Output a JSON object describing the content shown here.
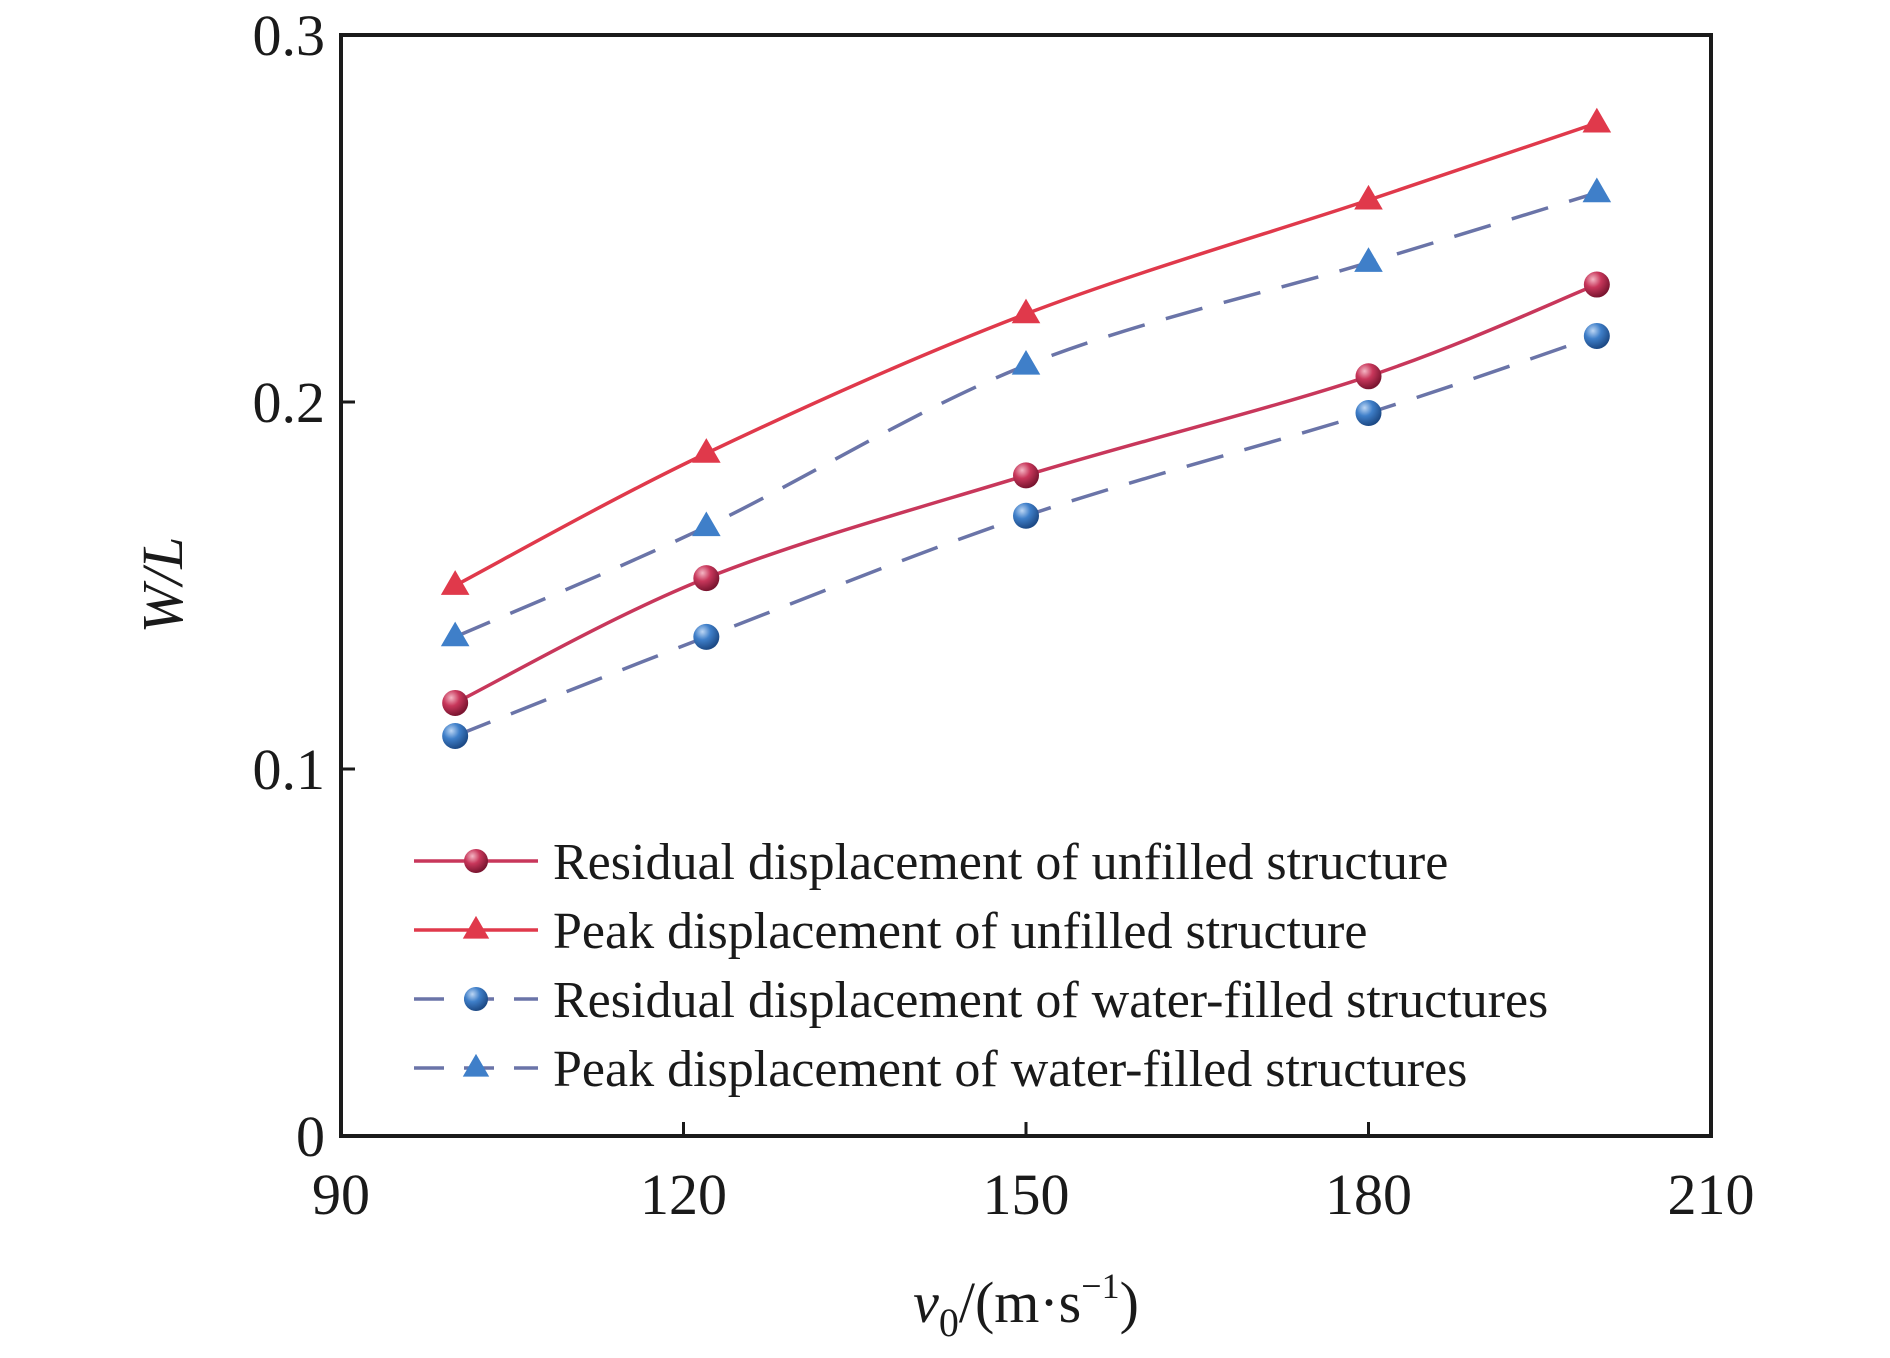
{
  "chart_data": {
    "type": "line",
    "xlabel": {
      "main": "v",
      "sub": "0",
      "rest": "/(m·s",
      "sup": "−1",
      "close": ")"
    },
    "ylabel": "W/L",
    "xlim": [
      90,
      210
    ],
    "ylim": [
      0,
      0.3
    ],
    "x_ticks": [
      90,
      120,
      150,
      180,
      210
    ],
    "x_tick_labels": [
      "90",
      "120",
      "150",
      "180",
      "210"
    ],
    "y_ticks": [
      0,
      0.1,
      0.2,
      0.3
    ],
    "y_tick_labels": [
      "0",
      "0.1",
      "0.2",
      "0.3"
    ],
    "grid": false,
    "legend_position": "bottom-center",
    "x": [
      100,
      122,
      150,
      180,
      200
    ],
    "series": [
      {
        "name": "Residual displacement of unfilled structure",
        "values": [
          0.118,
          0.152,
          0.18,
          0.207,
          0.232
        ],
        "color": "#c8375b",
        "marker": "circle",
        "dash": "solid"
      },
      {
        "name": "Peak displacement of unfilled structure",
        "values": [
          0.15,
          0.186,
          0.224,
          0.255,
          0.276
        ],
        "color": "#e0394b",
        "marker": "triangle",
        "dash": "solid"
      },
      {
        "name": "Residual displacement of water-filled structures",
        "values": [
          0.109,
          0.136,
          0.169,
          0.197,
          0.218
        ],
        "color": "#3f7fc9",
        "marker": "circle",
        "dash": "dashed"
      },
      {
        "name": "Peak displacement of water-filled structures",
        "values": [
          0.136,
          0.166,
          0.21,
          0.238,
          0.257
        ],
        "color": "#3f7fc9",
        "marker": "triangle",
        "dash": "dashed"
      }
    ]
  }
}
